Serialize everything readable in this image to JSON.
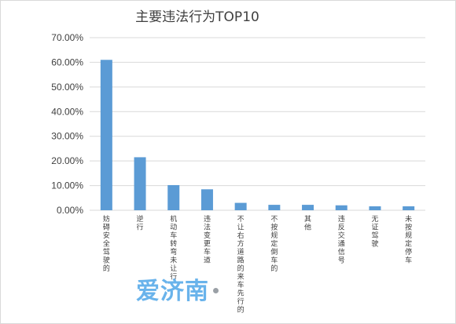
{
  "chart_data": {
    "type": "bar",
    "title": "主要违法行为TOP10",
    "categories": [
      "妨碍安全驾驶的",
      "逆行",
      "机动车转弯未让行",
      "违法变更车道",
      "不让右方道路的来车先行的",
      "不按规定倒车的",
      "其他",
      "违反交通信号",
      "无证驾驶",
      "未按规定停车"
    ],
    "values": [
      61.0,
      21.5,
      10.2,
      8.5,
      3.0,
      2.2,
      2.2,
      2.0,
      1.6,
      1.6
    ],
    "ylim": [
      0,
      70
    ],
    "ytick_step": 10,
    "ytick_format": "percent_2dp",
    "grid": true,
    "legend": "none",
    "bar_color": "#5b9bd5",
    "grid_color": "#d9d9d9"
  },
  "watermark": {
    "text": "爱济南"
  },
  "colors": {
    "text": "#404040",
    "background": "#ffffff"
  }
}
